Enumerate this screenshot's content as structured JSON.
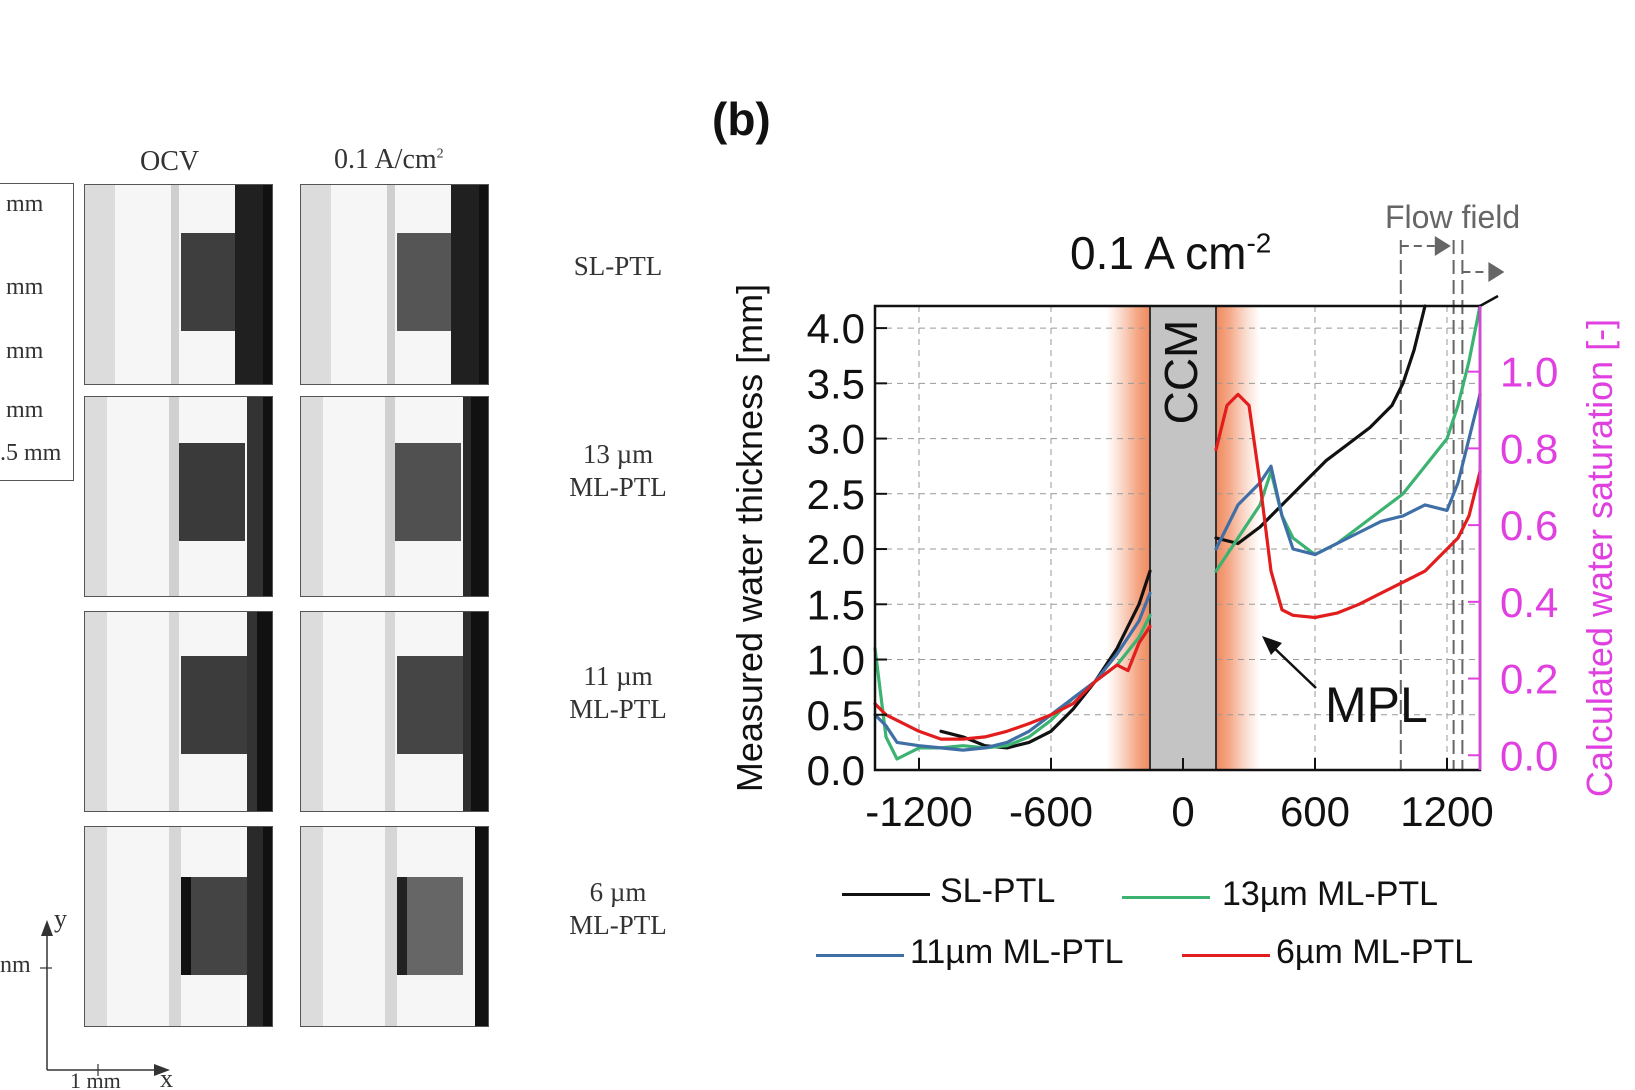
{
  "panel_a": {
    "column_headers": [
      "OCV",
      "0.1 A/cm"
    ],
    "column_header_superscript": "2",
    "row_labels": [
      {
        "line1": "SL-PTL",
        "line2": ""
      },
      {
        "line1": "13 µm",
        "line2": "ML-PTL"
      },
      {
        "line1": "11 µm",
        "line2": "ML-PTL"
      },
      {
        "line1": "6 µm",
        "line2": "ML-PTL"
      }
    ],
    "scale_labels": [
      "mm",
      "mm",
      "mm",
      "mm",
      ".5 mm"
    ],
    "axis": {
      "y_label": "y",
      "x_label": "x",
      "y_unit": "nm",
      "x_scale": "1 mm"
    }
  },
  "chart_data": {
    "type": "line",
    "panel_label": "(b)",
    "title": "0.1 A cm",
    "title_superscript": "-2",
    "xlabel": "",
    "ylabel": "Measured water thickness [mm]",
    "y2label": "Calculated water saturation [-]",
    "xlim": [
      -1400,
      1350
    ],
    "ylim": [
      0,
      4.2
    ],
    "y2lim": [
      -0.0384,
      1.1712
    ],
    "x_ticks": [
      -1200,
      -600,
      0,
      600,
      1200
    ],
    "x_tick_labels": [
      "-1200",
      "-600",
      "0",
      "600",
      "1200"
    ],
    "y_ticks": [
      0.0,
      0.5,
      1.0,
      1.5,
      2.0,
      2.5,
      3.0,
      3.5,
      4.0
    ],
    "y_tick_labels": [
      "0.0",
      "0.5",
      "1.0",
      "1.5",
      "2.0",
      "2.5",
      "3.0",
      "3.5",
      "4.0"
    ],
    "y2_ticks": [
      0.0,
      0.2,
      0.4,
      0.6,
      0.8,
      1.0
    ],
    "y2_tick_labels": [
      "0.0",
      "0.2",
      "0.4",
      "0.6",
      "0.8",
      "1.0"
    ],
    "grid": true,
    "ccm_region": {
      "x_start": -150,
      "x_end": 150,
      "label": "CCM"
    },
    "mpl_regions": [
      {
        "x_start": -350,
        "x_end": -150
      },
      {
        "x_start": 150,
        "x_end": 350
      }
    ],
    "flow_field_lines": [
      990,
      1230,
      1270
    ],
    "annotations": {
      "flow_field": "Flow field",
      "mpl": "MPL"
    },
    "legend_position": "bottom",
    "series": [
      {
        "name": "SL-PTL",
        "color": "#111111",
        "left": {
          "x": [
            -1100,
            -1000,
            -900,
            -800,
            -700,
            -600,
            -500,
            -400,
            -300,
            -200,
            -150
          ],
          "y": [
            0.35,
            0.3,
            0.22,
            0.2,
            0.25,
            0.35,
            0.55,
            0.8,
            1.1,
            1.5,
            1.8
          ]
        },
        "right": {
          "x": [
            150,
            250,
            350,
            450,
            550,
            650,
            750,
            850,
            950,
            1000,
            1050,
            1100
          ],
          "y": [
            2.1,
            2.05,
            2.2,
            2.4,
            2.6,
            2.8,
            2.95,
            3.1,
            3.3,
            3.5,
            3.8,
            4.2
          ]
        }
      },
      {
        "name": "13µm ML-PTL",
        "color": "#3cb371",
        "left": {
          "x": [
            -1400,
            -1350,
            -1300,
            -1200,
            -1100,
            -1000,
            -900,
            -800,
            -700,
            -600,
            -500,
            -400,
            -300,
            -200,
            -150
          ],
          "y": [
            1.1,
            0.3,
            0.1,
            0.2,
            0.2,
            0.22,
            0.2,
            0.22,
            0.3,
            0.45,
            0.65,
            0.8,
            0.95,
            1.2,
            1.4
          ]
        },
        "right": {
          "x": [
            150,
            250,
            350,
            400,
            450,
            500,
            600,
            700,
            800,
            900,
            1000,
            1100,
            1200,
            1250,
            1300,
            1350
          ],
          "y": [
            1.8,
            2.1,
            2.4,
            2.7,
            2.3,
            2.1,
            1.95,
            2.05,
            2.2,
            2.35,
            2.5,
            2.75,
            3.0,
            3.3,
            3.7,
            4.2
          ]
        }
      },
      {
        "name": "11µm ML-PTL",
        "color": "#3f6fa6",
        "left": {
          "x": [
            -1400,
            -1350,
            -1300,
            -1200,
            -1100,
            -1000,
            -900,
            -800,
            -700,
            -600,
            -500,
            -400,
            -300,
            -200,
            -150
          ],
          "y": [
            0.5,
            0.4,
            0.25,
            0.22,
            0.2,
            0.18,
            0.2,
            0.25,
            0.35,
            0.5,
            0.65,
            0.8,
            1.05,
            1.35,
            1.6
          ]
        },
        "right": {
          "x": [
            150,
            250,
            350,
            400,
            450,
            500,
            600,
            700,
            800,
            900,
            1000,
            1100,
            1200,
            1250,
            1300,
            1350
          ],
          "y": [
            2.0,
            2.4,
            2.6,
            2.75,
            2.3,
            2.0,
            1.95,
            2.05,
            2.15,
            2.25,
            2.3,
            2.4,
            2.35,
            2.6,
            3.0,
            3.4
          ]
        }
      },
      {
        "name": "6µm ML-PTL",
        "color": "#e21d1d",
        "left": {
          "x": [
            -1400,
            -1350,
            -1300,
            -1200,
            -1100,
            -1000,
            -900,
            -800,
            -700,
            -600,
            -500,
            -400,
            -300,
            -250,
            -200,
            -150
          ],
          "y": [
            0.6,
            0.5,
            0.45,
            0.35,
            0.28,
            0.28,
            0.3,
            0.35,
            0.42,
            0.5,
            0.6,
            0.8,
            0.95,
            0.9,
            1.15,
            1.3
          ]
        },
        "right": {
          "x": [
            150,
            200,
            250,
            300,
            350,
            400,
            450,
            500,
            600,
            700,
            800,
            900,
            1000,
            1100,
            1200,
            1250,
            1300,
            1350
          ],
          "y": [
            2.9,
            3.3,
            3.4,
            3.3,
            2.6,
            1.8,
            1.45,
            1.4,
            1.38,
            1.42,
            1.5,
            1.6,
            1.7,
            1.8,
            2.0,
            2.1,
            2.3,
            2.7
          ]
        }
      }
    ]
  }
}
